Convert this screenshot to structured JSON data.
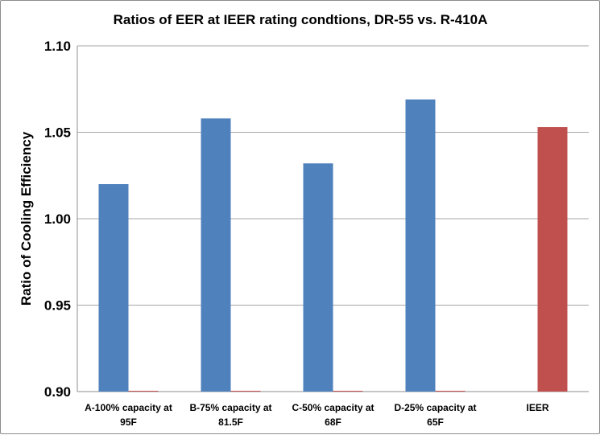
{
  "chart_data": {
    "type": "bar",
    "title": "Ratios of EER at IEER rating condtions, DR-55 vs. R-410A",
    "xlabel": "",
    "ylabel": "Ratio of Cooling Efficiency",
    "ylim": [
      0.9,
      1.1
    ],
    "yticks": [
      "0.90",
      "0.95",
      "1.00",
      "1.05",
      "1.10"
    ],
    "grid": true,
    "legend": "none",
    "categories": [
      [
        "A-100% capacity at",
        "95F"
      ],
      [
        "B-75% capacity at",
        "81.5F"
      ],
      [
        "C-50% capacity at",
        "68F"
      ],
      [
        "D-25% capacity at",
        "65F"
      ],
      [
        "IEER"
      ]
    ],
    "series": [
      {
        "color": "#4f81bd",
        "values": [
          1.02,
          1.058,
          1.032,
          1.069,
          null
        ]
      },
      {
        "color": "#c0504d",
        "values": [
          0.9,
          0.9,
          0.9,
          0.9,
          1.053
        ]
      }
    ]
  }
}
